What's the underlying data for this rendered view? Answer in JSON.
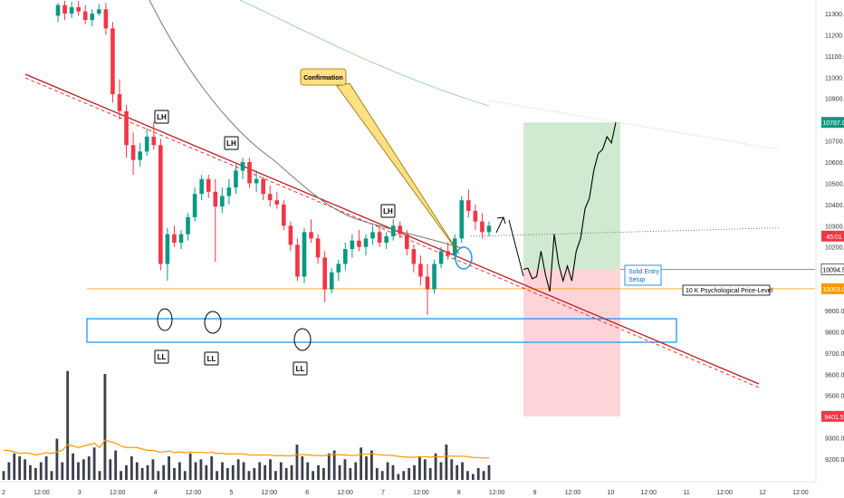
{
  "chart_data": {
    "type": "candlestick",
    "y_axis": {
      "ticks": [
        "11300.0",
        "11200.0",
        "11100.0",
        "11000.0",
        "10900.0",
        "10800.0",
        "10700.0",
        "10600.0",
        "10500.0",
        "10400.0",
        "10300.0",
        "10200.0",
        "10100.0",
        "10000.0",
        "9900.0",
        "9800.0",
        "9700.0",
        "9600.0",
        "9500.0",
        "9400.0",
        "9300.0",
        "9200.0"
      ],
      "range": [
        9185,
        11360
      ]
    },
    "x_axis": {
      "ticks": [
        "2",
        "12:00",
        "3",
        "12:00",
        "4",
        "12:00",
        "5",
        "12:00",
        "6",
        "12:00",
        "7",
        "12:00",
        "8",
        "12:00",
        "9",
        "12:00",
        "10",
        "12:00",
        "11",
        "12:00",
        "12",
        "12:00"
      ]
    },
    "price_tags": [
      {
        "value": 10787.0,
        "label": "10787.0",
        "color": "#089981"
      },
      {
        "value": 10251.0,
        "label": "45:01",
        "color": "#f23645"
      },
      {
        "value": 10094.5,
        "label": "10094.5",
        "color": "#ffffff"
      },
      {
        "value": 10003.0,
        "label": "10003.0",
        "color": "#ff9800"
      },
      {
        "value": 9401.5,
        "label": "9401.5",
        "color": "#f23645"
      }
    ],
    "candles": [
      {
        "o": 11290,
        "h": 11350,
        "l": 11260,
        "c": 11340
      },
      {
        "o": 11340,
        "h": 11360,
        "l": 11270,
        "c": 11300
      },
      {
        "o": 11300,
        "h": 11355,
        "l": 11280,
        "c": 11330
      },
      {
        "o": 11330,
        "h": 11360,
        "l": 11290,
        "c": 11310
      },
      {
        "o": 11310,
        "h": 11340,
        "l": 11250,
        "c": 11270
      },
      {
        "o": 11270,
        "h": 11320,
        "l": 11240,
        "c": 11300
      },
      {
        "o": 11300,
        "h": 11345,
        "l": 11290,
        "c": 11320
      },
      {
        "o": 11320,
        "h": 11350,
        "l": 11200,
        "c": 11230
      },
      {
        "o": 11230,
        "h": 11260,
        "l": 10880,
        "c": 10920
      },
      {
        "o": 10920,
        "h": 10990,
        "l": 10800,
        "c": 10840
      },
      {
        "o": 10840,
        "h": 10870,
        "l": 10620,
        "c": 10680
      },
      {
        "o": 10680,
        "h": 10740,
        "l": 10540,
        "c": 10610
      },
      {
        "o": 10610,
        "h": 10690,
        "l": 10580,
        "c": 10650
      },
      {
        "o": 10650,
        "h": 10760,
        "l": 10630,
        "c": 10720
      },
      {
        "o": 10720,
        "h": 10790,
        "l": 10660,
        "c": 10680
      },
      {
        "o": 10680,
        "h": 10710,
        "l": 10090,
        "c": 10120
      },
      {
        "o": 10120,
        "h": 10290,
        "l": 10040,
        "c": 10260
      },
      {
        "o": 10260,
        "h": 10300,
        "l": 10200,
        "c": 10220
      },
      {
        "o": 10220,
        "h": 10280,
        "l": 10190,
        "c": 10260
      },
      {
        "o": 10260,
        "h": 10360,
        "l": 10230,
        "c": 10340
      },
      {
        "o": 10340,
        "h": 10480,
        "l": 10320,
        "c": 10450
      },
      {
        "o": 10450,
        "h": 10540,
        "l": 10420,
        "c": 10520
      },
      {
        "o": 10520,
        "h": 10540,
        "l": 10430,
        "c": 10460
      },
      {
        "o": 10460,
        "h": 10520,
        "l": 10130,
        "c": 10390
      },
      {
        "o": 10390,
        "h": 10480,
        "l": 10360,
        "c": 10440
      },
      {
        "o": 10440,
        "h": 10520,
        "l": 10400,
        "c": 10480
      },
      {
        "o": 10480,
        "h": 10590,
        "l": 10450,
        "c": 10560
      },
      {
        "o": 10560,
        "h": 10620,
        "l": 10520,
        "c": 10600
      },
      {
        "o": 10600,
        "h": 10620,
        "l": 10480,
        "c": 10500
      },
      {
        "o": 10500,
        "h": 10560,
        "l": 10460,
        "c": 10520
      },
      {
        "o": 10520,
        "h": 10530,
        "l": 10420,
        "c": 10450
      },
      {
        "o": 10450,
        "h": 10490,
        "l": 10390,
        "c": 10420
      },
      {
        "o": 10420,
        "h": 10460,
        "l": 10380,
        "c": 10400
      },
      {
        "o": 10400,
        "h": 10420,
        "l": 10280,
        "c": 10300
      },
      {
        "o": 10300,
        "h": 10320,
        "l": 10180,
        "c": 10210
      },
      {
        "o": 10210,
        "h": 10240,
        "l": 10040,
        "c": 10060
      },
      {
        "o": 10060,
        "h": 10290,
        "l": 10030,
        "c": 10270
      },
      {
        "o": 10270,
        "h": 10330,
        "l": 10220,
        "c": 10240
      },
      {
        "o": 10240,
        "h": 10260,
        "l": 10120,
        "c": 10150
      },
      {
        "o": 10150,
        "h": 10180,
        "l": 9940,
        "c": 10000
      },
      {
        "o": 10000,
        "h": 10100,
        "l": 9980,
        "c": 10080
      },
      {
        "o": 10080,
        "h": 10140,
        "l": 10040,
        "c": 10120
      },
      {
        "o": 10120,
        "h": 10220,
        "l": 10090,
        "c": 10190
      },
      {
        "o": 10190,
        "h": 10260,
        "l": 10150,
        "c": 10230
      },
      {
        "o": 10230,
        "h": 10280,
        "l": 10180,
        "c": 10200
      },
      {
        "o": 10200,
        "h": 10260,
        "l": 10160,
        "c": 10240
      },
      {
        "o": 10240,
        "h": 10300,
        "l": 10210,
        "c": 10270
      },
      {
        "o": 10270,
        "h": 10300,
        "l": 10200,
        "c": 10220
      },
      {
        "o": 10220,
        "h": 10270,
        "l": 10190,
        "c": 10250
      },
      {
        "o": 10250,
        "h": 10330,
        "l": 10230,
        "c": 10300
      },
      {
        "o": 10300,
        "h": 10320,
        "l": 10240,
        "c": 10260
      },
      {
        "o": 10260,
        "h": 10280,
        "l": 10160,
        "c": 10190
      },
      {
        "o": 10190,
        "h": 10210,
        "l": 10080,
        "c": 10120
      },
      {
        "o": 10120,
        "h": 10160,
        "l": 10020,
        "c": 10060
      },
      {
        "o": 10060,
        "h": 10120,
        "l": 9880,
        "c": 10000
      },
      {
        "o": 10000,
        "h": 10140,
        "l": 9980,
        "c": 10120
      },
      {
        "o": 10120,
        "h": 10200,
        "l": 10100,
        "c": 10180
      },
      {
        "o": 10180,
        "h": 10220,
        "l": 10140,
        "c": 10160
      },
      {
        "o": 10160,
        "h": 10260,
        "l": 10140,
        "c": 10240
      },
      {
        "o": 10240,
        "h": 10440,
        "l": 10220,
        "c": 10420
      },
      {
        "o": 10420,
        "h": 10470,
        "l": 10340,
        "c": 10370
      },
      {
        "o": 10370,
        "h": 10400,
        "l": 10280,
        "c": 10320
      },
      {
        "o": 10320,
        "h": 10360,
        "l": 10240,
        "c": 10270
      },
      {
        "o": 10270,
        "h": 10320,
        "l": 10250,
        "c": 10300
      }
    ],
    "volume_range": [
      0,
      4000
    ],
    "volume": [
      300,
      600,
      900,
      800,
      700,
      500,
      400,
      600,
      800,
      300,
      1400,
      600,
      3700,
      900,
      600,
      700,
      800,
      1100,
      300,
      3600,
      700,
      1000,
      300,
      500,
      800,
      600,
      400,
      500,
      700,
      300,
      500,
      800,
      400,
      600,
      300,
      900,
      600,
      700,
      500,
      800,
      300,
      600,
      400,
      500,
      700,
      600,
      300,
      400,
      600,
      500,
      700,
      300,
      600,
      400,
      500,
      1200,
      800,
      600,
      300,
      500,
      400,
      900,
      1000,
      500,
      700,
      400,
      600,
      1100,
      800,
      1000,
      400,
      300,
      600,
      500,
      200,
      300,
      400,
      500,
      800,
      700,
      400,
      900,
      600,
      1200,
      700,
      500,
      600,
      300,
      200,
      400,
      300,
      500
    ],
    "volume_ma": [
      1000,
      1000,
      950,
      900,
      920,
      900,
      850,
      880,
      930,
      900,
      950,
      1000,
      1200,
      1150,
      1100,
      1150,
      1200,
      1250,
      1100,
      1350,
      1300,
      1250,
      1150,
      1100,
      1100,
      1100,
      1050,
      1000,
      1000,
      950,
      950,
      980,
      930,
      950,
      920,
      950,
      930,
      940,
      920,
      940,
      900,
      900,
      880,
      880,
      890,
      880,
      850,
      840,
      850,
      840,
      850,
      820,
      830,
      820,
      820,
      860,
      860,
      850,
      830,
      830,
      820,
      850,
      870,
      850,
      850,
      830,
      830,
      870,
      870,
      890,
      860,
      840,
      840,
      830,
      800,
      780,
      770,
      770,
      790,
      790,
      770,
      790,
      780,
      810,
      810,
      800,
      810,
      790,
      760,
      760,
      740,
      750
    ],
    "ma_gray": [
      [
        0.0,
        11300
      ],
      [
        0.2,
        11200
      ],
      [
        0.3,
        11050
      ],
      [
        0.4,
        10900
      ],
      [
        0.5,
        10760
      ],
      [
        0.6,
        10640
      ],
      [
        0.7,
        10560
      ],
      [
        0.8,
        10480
      ],
      [
        0.9,
        10420
      ],
      [
        1.0,
        10360
      ],
      [
        1.2,
        10300
      ],
      [
        1.35,
        10260
      ],
      [
        1.5,
        10250
      ]
    ],
    "ma_green_path": "green-200",
    "annotations": {
      "lh_labels": [
        "LH",
        "LH",
        "LH"
      ],
      "ll_labels": [
        "LL",
        "LL",
        "LL"
      ],
      "confirmation": "Confirmation",
      "solid_entry": "Solid Entry\nSetup",
      "psych_level": "10 K Psychological Price-Level"
    },
    "projection": [
      10094,
      10100,
      10050,
      10060,
      10180,
      10070,
      9990,
      10260,
      10120,
      10040,
      10110,
      10040,
      10180,
      10240,
      10380,
      10430,
      10560,
      10640,
      10660,
      10720,
      10690,
      10787
    ]
  }
}
